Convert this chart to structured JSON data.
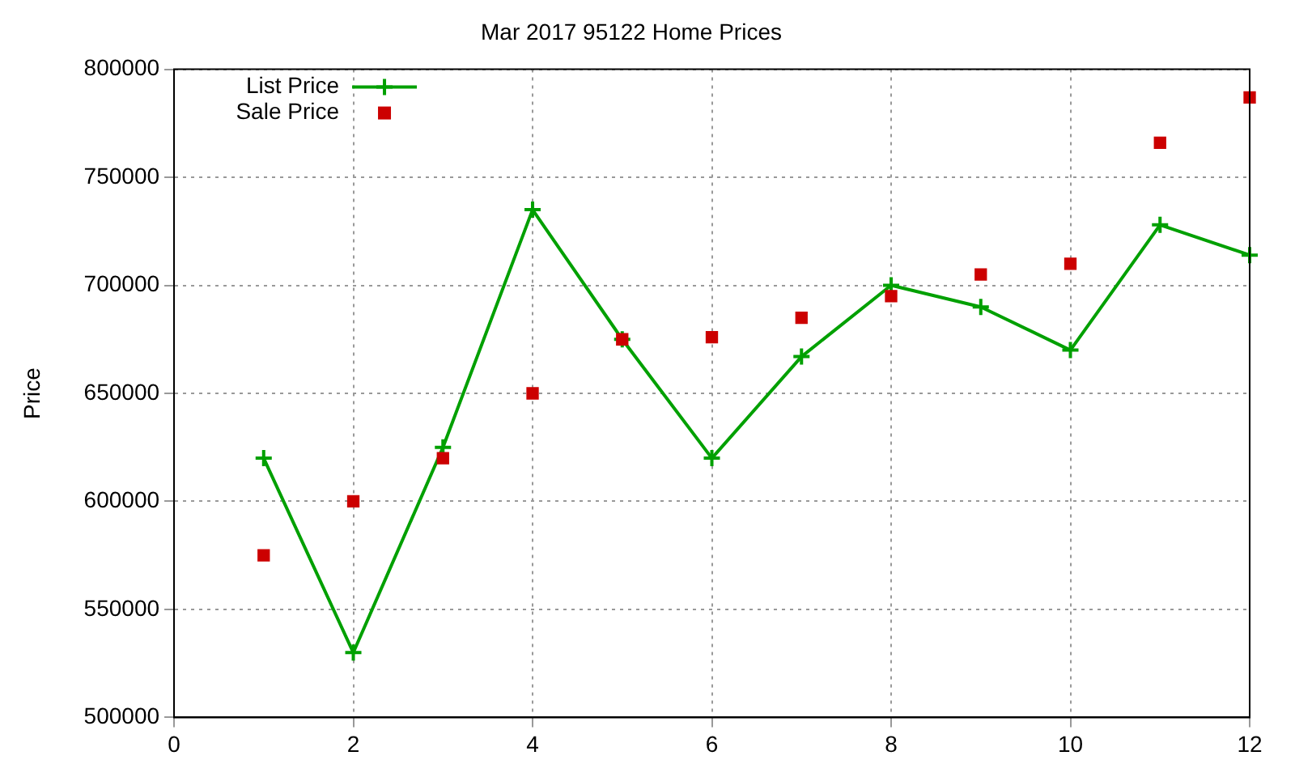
{
  "chart_data": {
    "type": "line",
    "title": "Mar 2017 95122 Home Prices",
    "ylabel": "Price",
    "x": [
      1,
      2,
      3,
      4,
      5,
      6,
      7,
      8,
      9,
      10,
      11,
      12
    ],
    "series": [
      {
        "name": "List Price",
        "color": "#00a000",
        "marker": "cross",
        "values": [
          620000,
          530000,
          625000,
          735000,
          675000,
          620000,
          667000,
          700000,
          690000,
          670000,
          728000,
          714000
        ]
      },
      {
        "name": "Sale Price",
        "type": "scatter",
        "color": "#cc0000",
        "marker": "square",
        "values": [
          575000,
          600000,
          620000,
          650000,
          675000,
          676000,
          685000,
          695000,
          705000,
          710000,
          766000,
          787000
        ]
      }
    ],
    "xlim": [
      0,
      12
    ],
    "xticks": [
      0,
      2,
      4,
      6,
      8,
      10,
      12
    ],
    "ylim": [
      500000,
      800000
    ],
    "yticks": [
      500000,
      550000,
      600000,
      650000,
      700000,
      750000,
      800000
    ],
    "grid": true,
    "legend": "top left"
  }
}
